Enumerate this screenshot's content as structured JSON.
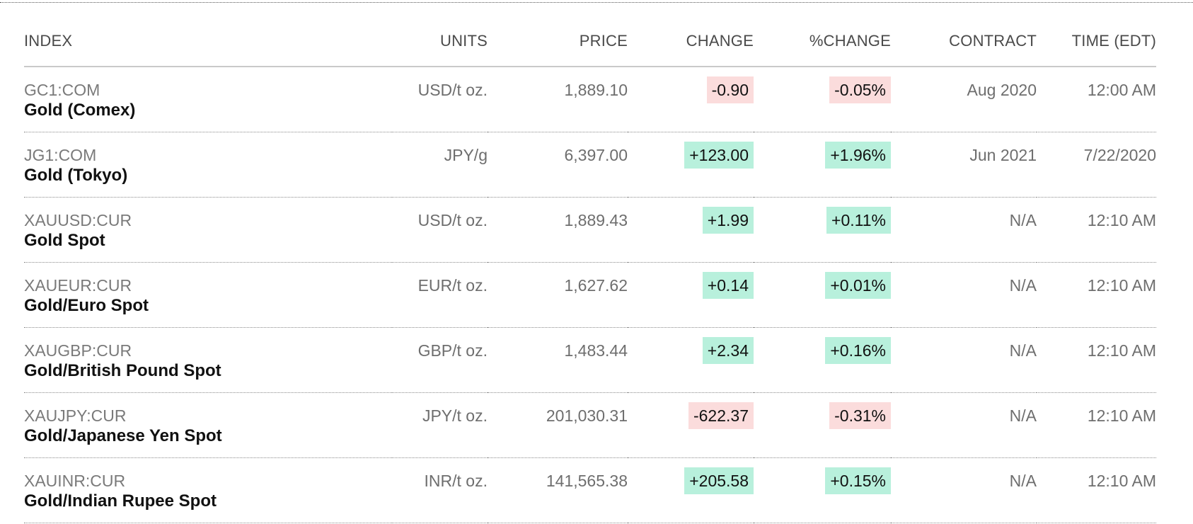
{
  "columns": {
    "index": "INDEX",
    "units": "UNITS",
    "price": "PRICE",
    "change": "CHANGE",
    "pct_change": "%CHANGE",
    "contract": "CONTRACT",
    "time": "TIME (EDT)"
  },
  "colors": {
    "positive_bg": "#b8f0dc",
    "negative_bg": "#fbdcdc"
  },
  "rows": [
    {
      "ticker": "GC1:COM",
      "name": "Gold (Comex)",
      "units": "USD/t oz.",
      "price": "1,889.10",
      "change": "-0.90",
      "pct_change": "-0.05%",
      "contract": "Aug 2020",
      "time": "12:00 AM",
      "direction": "down"
    },
    {
      "ticker": "JG1:COM",
      "name": "Gold (Tokyo)",
      "units": "JPY/g",
      "price": "6,397.00",
      "change": "+123.00",
      "pct_change": "+1.96%",
      "contract": "Jun 2021",
      "time": "7/22/2020",
      "direction": "up"
    },
    {
      "ticker": "XAUUSD:CUR",
      "name": "Gold Spot",
      "units": "USD/t oz.",
      "price": "1,889.43",
      "change": "+1.99",
      "pct_change": "+0.11%",
      "contract": "N/A",
      "time": "12:10 AM",
      "direction": "up"
    },
    {
      "ticker": "XAUEUR:CUR",
      "name": "Gold/Euro Spot",
      "units": "EUR/t oz.",
      "price": "1,627.62",
      "change": "+0.14",
      "pct_change": "+0.01%",
      "contract": "N/A",
      "time": "12:10 AM",
      "direction": "up"
    },
    {
      "ticker": "XAUGBP:CUR",
      "name": "Gold/British Pound Spot",
      "units": "GBP/t oz.",
      "price": "1,483.44",
      "change": "+2.34",
      "pct_change": "+0.16%",
      "contract": "N/A",
      "time": "12:10 AM",
      "direction": "up"
    },
    {
      "ticker": "XAUJPY:CUR",
      "name": "Gold/Japanese Yen Spot",
      "units": "JPY/t oz.",
      "price": "201,030.31",
      "change": "-622.37",
      "pct_change": "-0.31%",
      "contract": "N/A",
      "time": "12:10 AM",
      "direction": "down"
    },
    {
      "ticker": "XAUINR:CUR",
      "name": "Gold/Indian Rupee Spot",
      "units": "INR/t oz.",
      "price": "141,565.38",
      "change": "+205.58",
      "pct_change": "+0.15%",
      "contract": "N/A",
      "time": "12:10 AM",
      "direction": "up"
    }
  ]
}
